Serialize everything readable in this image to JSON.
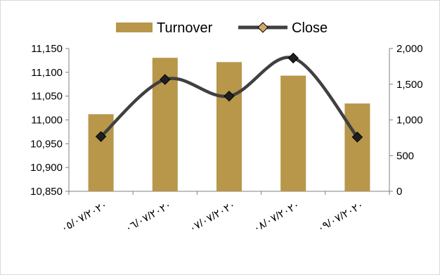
{
  "chart_data": {
    "type": "bar+line",
    "categories": [
      "٠٥/٠٧/٢٠٢٠",
      "٠٦/٠٧/٢٠٢٠",
      "٠٧/٠٧/٢٠٢٠",
      "٠٨/٠٧/٢٠٢٠",
      "٠٩/٠٧/٢٠٢٠"
    ],
    "series": [
      {
        "name": "Turnover",
        "type": "bar",
        "axis": "right",
        "color": "#b8964a",
        "values": [
          1080,
          1870,
          1810,
          1620,
          1230
        ]
      },
      {
        "name": "Close",
        "type": "line",
        "axis": "left",
        "color": "#404040",
        "marker_color": "#cfa96a",
        "values": [
          10965,
          11085,
          11050,
          11130,
          10964
        ]
      }
    ],
    "y_left": {
      "lim": [
        10850,
        11150
      ],
      "ticks": [
        10850,
        10900,
        10950,
        11000,
        11050,
        11100,
        11150
      ],
      "tick_labels": [
        "10,850",
        "10,900",
        "10,950",
        "11,000",
        "11,050",
        "11,100",
        "11,150"
      ]
    },
    "y_right": {
      "lim": [
        0,
        2000
      ],
      "ticks": [
        0,
        500,
        1000,
        1500,
        2000
      ],
      "tick_labels": [
        "0",
        "500",
        "1,000",
        "1,500",
        "2,000"
      ]
    },
    "legend": {
      "placement": "top-center",
      "items": [
        "Turnover",
        "Close"
      ]
    },
    "grid": false
  }
}
